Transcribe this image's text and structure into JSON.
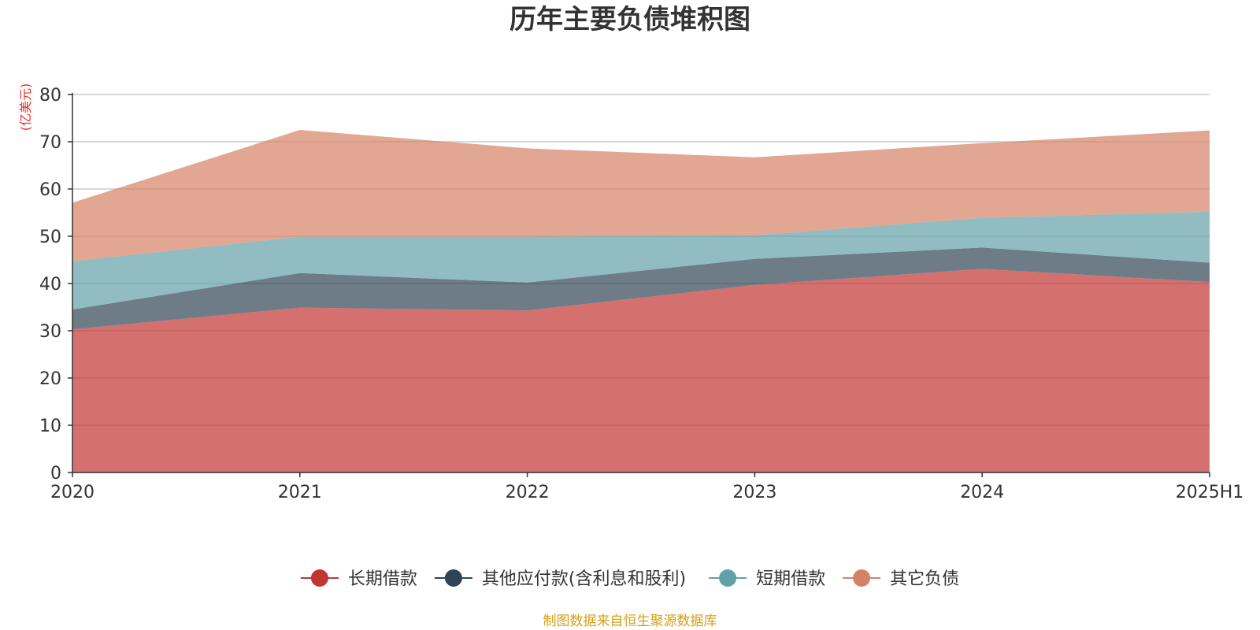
{
  "chart_data": {
    "type": "area",
    "stacked": true,
    "title": "历年主要负债堆积图",
    "ylabel": "(亿美元)",
    "xlabel": "",
    "categories": [
      "2020",
      "2021",
      "2022",
      "2023",
      "2024",
      "2025H1"
    ],
    "ylim": [
      0,
      80
    ],
    "yticks": [
      0,
      10,
      20,
      30,
      40,
      50,
      60,
      70,
      80
    ],
    "grid": true,
    "legend_position": "bottom",
    "series": [
      {
        "name": "长期借款",
        "values": [
          30.3,
          34.9,
          34.3,
          39.7,
          43.1,
          40.3
        ],
        "color": "#c23531"
      },
      {
        "name": "其他应付款(含利息和股利)",
        "values": [
          4.2,
          7.3,
          5.9,
          5.5,
          4.5,
          4.1
        ],
        "color": "#2f4554"
      },
      {
        "name": "短期借款",
        "values": [
          10.2,
          7.7,
          9.7,
          5.0,
          6.3,
          10.8
        ],
        "color": "#61a0a8"
      },
      {
        "name": "其它负债",
        "values": [
          12.4,
          22.6,
          18.7,
          16.5,
          15.8,
          17.2
        ],
        "color": "#d48265"
      }
    ],
    "source": "制图数据来自恒生聚源数据库"
  }
}
